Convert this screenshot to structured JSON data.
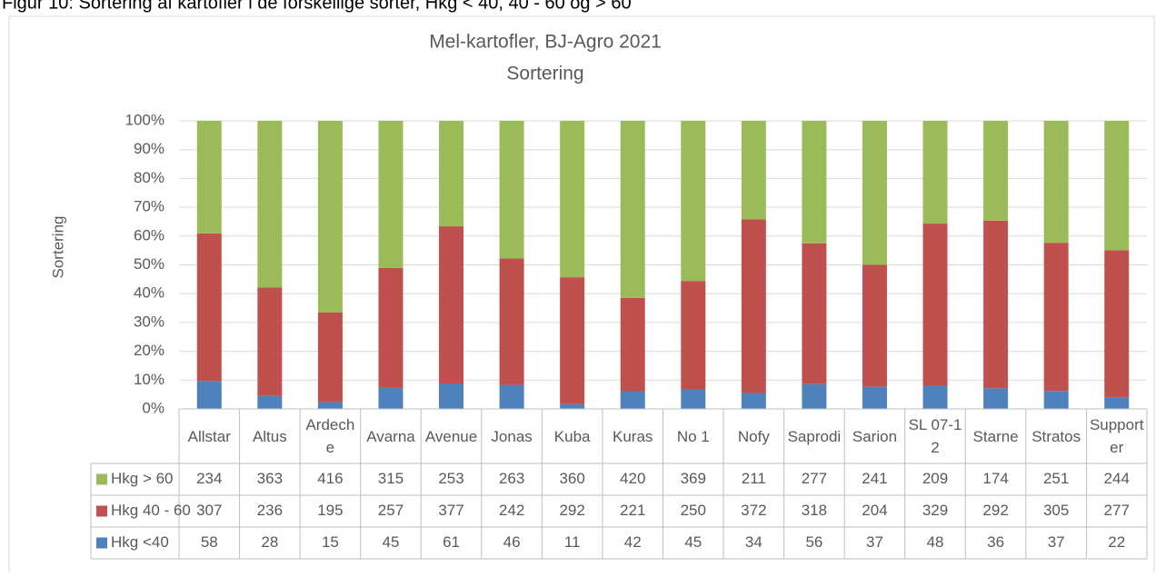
{
  "caption": "Figur 10: Sortering af kartofler i de forskellige sorter, Hkg < 40, 40 - 60 og > 60",
  "chart_data": {
    "type": "bar",
    "stacked": "percent",
    "title": "Mel-kartofler, BJ-Agro 2021",
    "subtitle": "Sortering",
    "y_label": "Sortering",
    "categories": [
      "Allstar",
      "Altus",
      "Ardeche",
      "Avarna",
      "Avenue",
      "Jonas",
      "Kuba",
      "Kuras",
      "No 1",
      "Nofy",
      "Saprodi",
      "Sarion",
      "SL 07-12",
      "Starne",
      "Stratos",
      "Supporter"
    ],
    "series": [
      {
        "name": "Hkg > 60",
        "color": "#9bbb59",
        "values": [
          234,
          363,
          416,
          315,
          253,
          263,
          360,
          420,
          369,
          211,
          277,
          241,
          209,
          174,
          251,
          244
        ]
      },
      {
        "name": "Hkg 40 - 60",
        "color": "#c0504d",
        "values": [
          307,
          236,
          195,
          257,
          377,
          242,
          292,
          221,
          250,
          372,
          318,
          204,
          329,
          292,
          305,
          277
        ]
      },
      {
        "name": "Hkg <40",
        "color": "#4f81bd",
        "values": [
          58,
          28,
          15,
          45,
          61,
          46,
          11,
          42,
          45,
          34,
          56,
          37,
          48,
          36,
          37,
          22
        ]
      }
    ],
    "ylim": [
      0,
      100
    ],
    "yticks": [
      {
        "value": 0,
        "label": "0%"
      },
      {
        "value": 10,
        "label": "10%"
      },
      {
        "value": 20,
        "label": "20%"
      },
      {
        "value": 30,
        "label": "30%"
      },
      {
        "value": 40,
        "label": "40%"
      },
      {
        "value": 50,
        "label": "50%"
      },
      {
        "value": 60,
        "label": "60%"
      },
      {
        "value": 70,
        "label": "70%"
      },
      {
        "value": 80,
        "label": "80%"
      },
      {
        "value": 90,
        "label": "90%"
      },
      {
        "value": 100,
        "label": "100%"
      }
    ],
    "grid": true,
    "data_table": true
  }
}
